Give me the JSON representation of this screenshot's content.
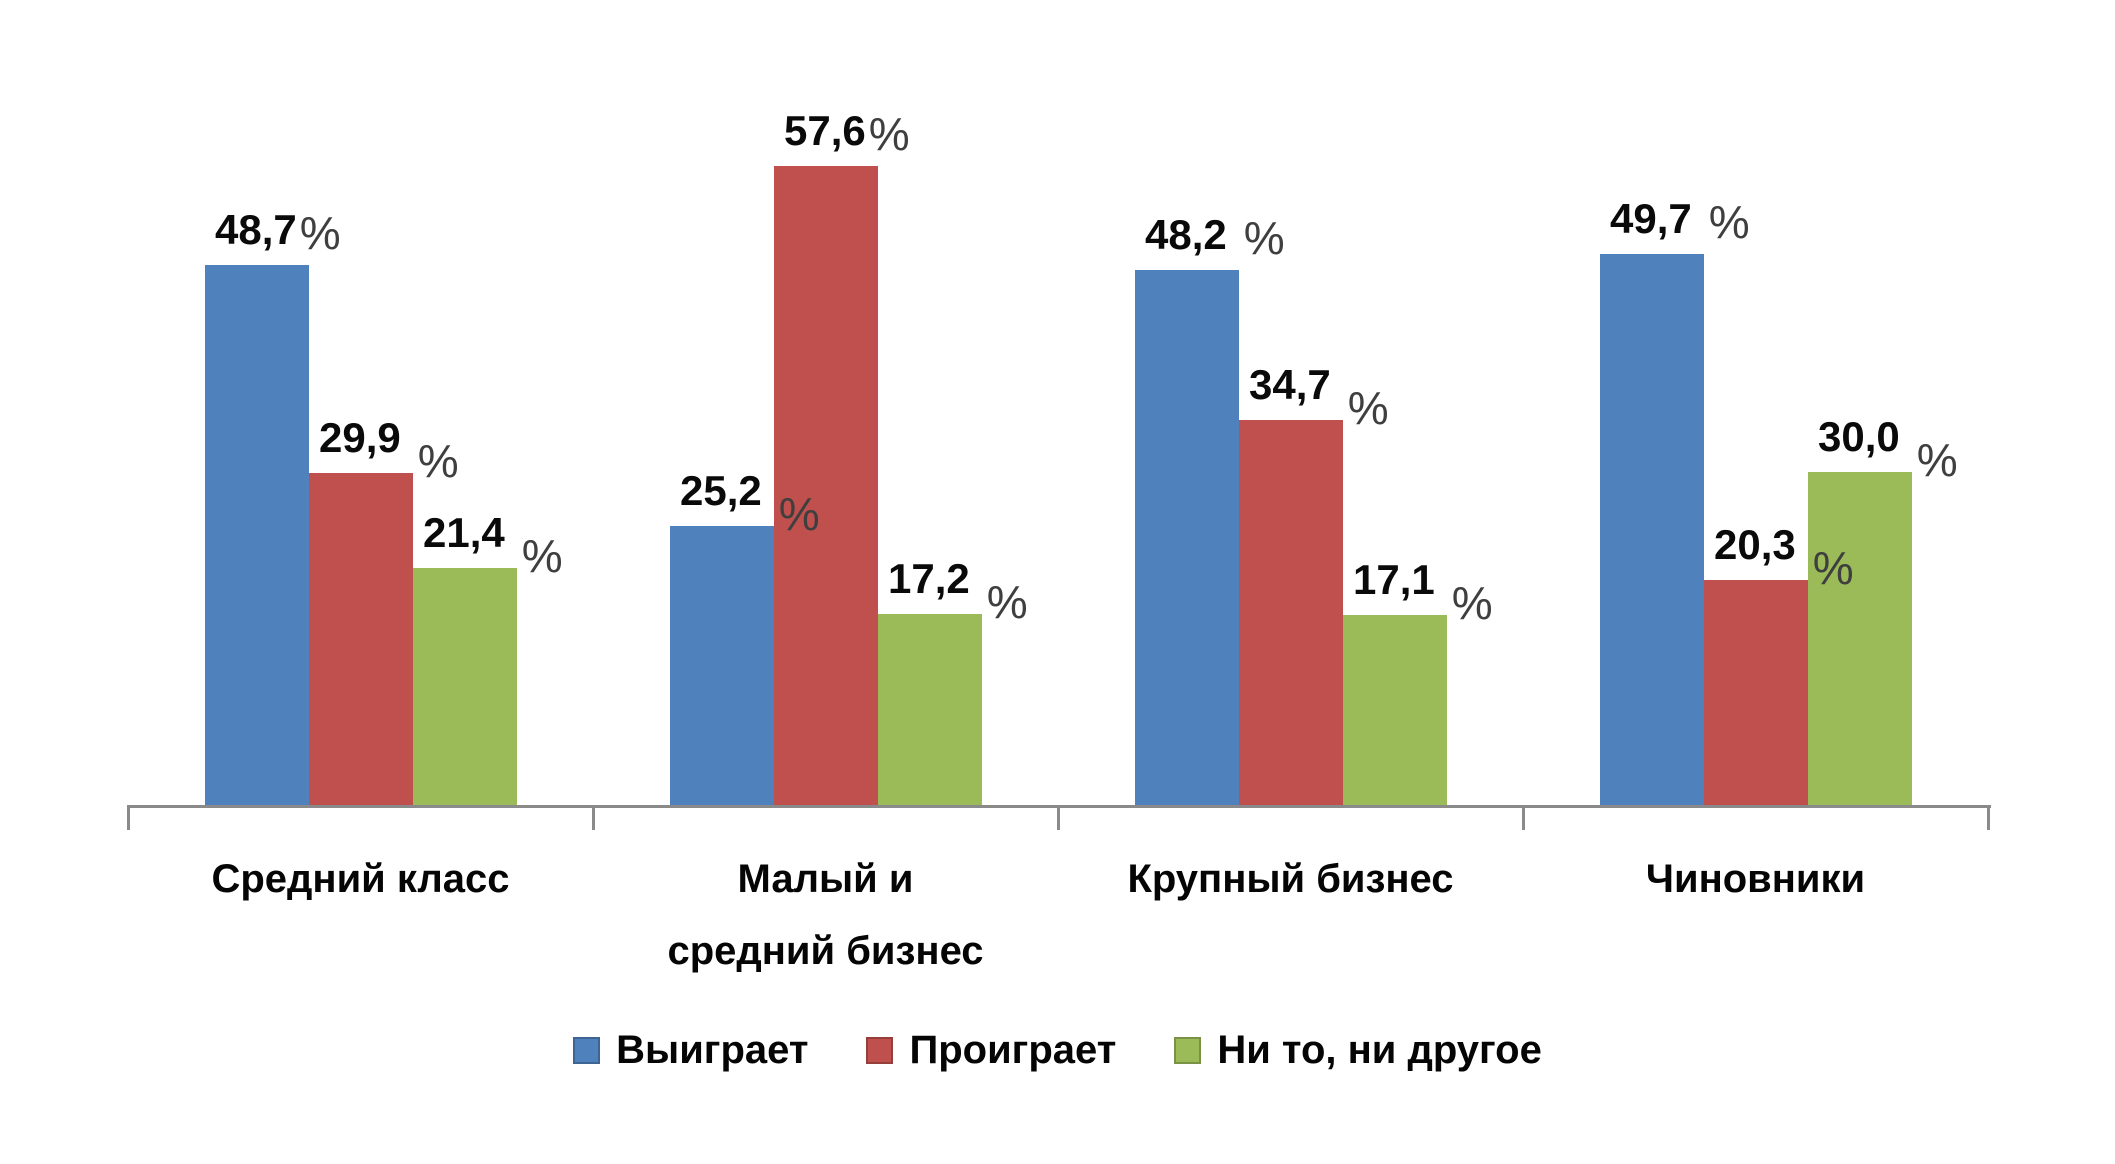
{
  "chart_data": {
    "type": "bar",
    "categories": [
      "Средний класс",
      "Малый и средний бизнес",
      "Крупный бизнес",
      "Чиновники"
    ],
    "series": [
      {
        "name": "Выиграет",
        "color": "#4F81BD",
        "values": [
          48.7,
          25.2,
          48.2,
          49.7
        ],
        "labels": [
          {
            "text": "48,7",
            "pct_low": false,
            "pct_gap": false
          },
          {
            "text": "25,2",
            "pct_low": true,
            "pct_gap": true
          },
          {
            "text": "48,2",
            "pct_low": false,
            "pct_gap": true
          },
          {
            "text": "49,7",
            "pct_low": false,
            "pct_gap": true
          }
        ]
      },
      {
        "name": "Проиграет",
        "color": "#C0504D",
        "values": [
          29.9,
          57.6,
          34.7,
          20.3
        ],
        "labels": [
          {
            "text": "29,9",
            "pct_low": true,
            "pct_gap": true
          },
          {
            "text": "57,6",
            "pct_low": false,
            "pct_gap": false
          },
          {
            "text": "34,7",
            "pct_low": true,
            "pct_gap": true
          },
          {
            "text": "20,3",
            "pct_low": true,
            "pct_gap": true
          }
        ]
      },
      {
        "name": "Ни то, ни другое",
        "color": "#9BBB59",
        "values": [
          21.4,
          17.2,
          17.1,
          30.0
        ],
        "labels": [
          {
            "text": "21,4",
            "pct_low": true,
            "pct_gap": true
          },
          {
            "text": "17,2",
            "pct_low": true,
            "pct_gap": true
          },
          {
            "text": "17,1",
            "pct_low": true,
            "pct_gap": true
          },
          {
            "text": "30,0",
            "pct_low": true,
            "pct_gap": true
          }
        ]
      }
    ],
    "percent_sign": "%",
    "axis_color": "#8A8A8A",
    "grid": false,
    "legend_position": "bottom",
    "xlabel": "",
    "ylabel": ""
  }
}
